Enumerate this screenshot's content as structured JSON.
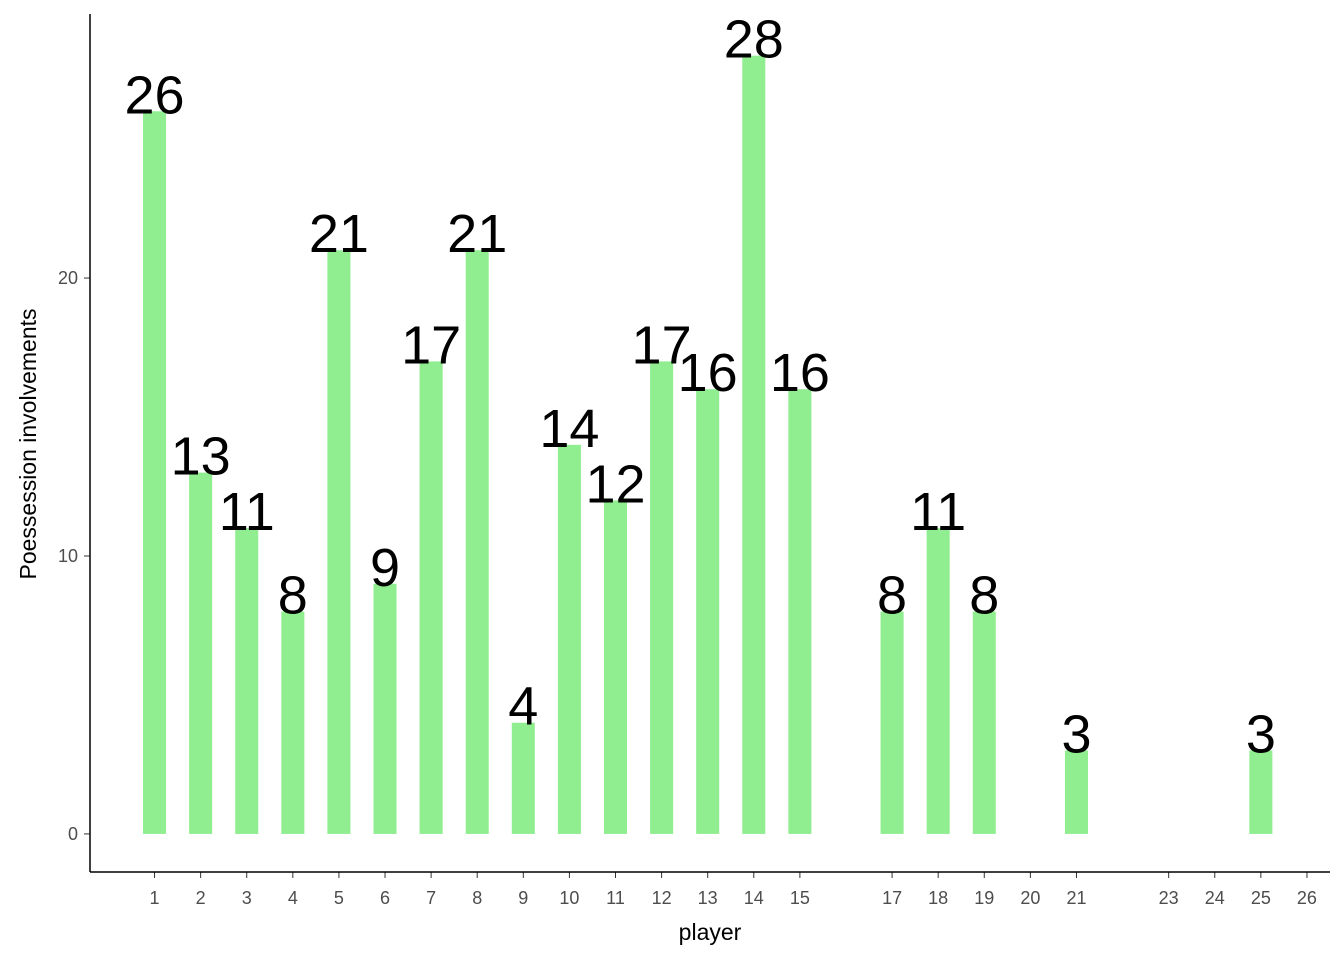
{
  "chart_data": {
    "type": "bar",
    "x_label": "player",
    "y_label": "Poessession involvements",
    "x": [
      1,
      2,
      3,
      4,
      5,
      6,
      7,
      8,
      9,
      10,
      11,
      12,
      13,
      14,
      15,
      17,
      18,
      19,
      21,
      25
    ],
    "values": [
      26,
      13,
      11,
      8,
      21,
      9,
      17,
      21,
      4,
      14,
      12,
      17,
      16,
      28,
      16,
      8,
      11,
      8,
      3,
      3
    ],
    "color": "#90ee90",
    "xlim": [
      -0.4,
      26.5
    ],
    "xticks": [
      1,
      2,
      3,
      4,
      5,
      6,
      7,
      8,
      9,
      10,
      11,
      12,
      13,
      14,
      15,
      17,
      18,
      19,
      20,
      21,
      23,
      24,
      25,
      26
    ],
    "ylim": [
      -1.37,
      29.5
    ],
    "yticks": [
      0,
      10,
      20
    ],
    "grid": false
  }
}
